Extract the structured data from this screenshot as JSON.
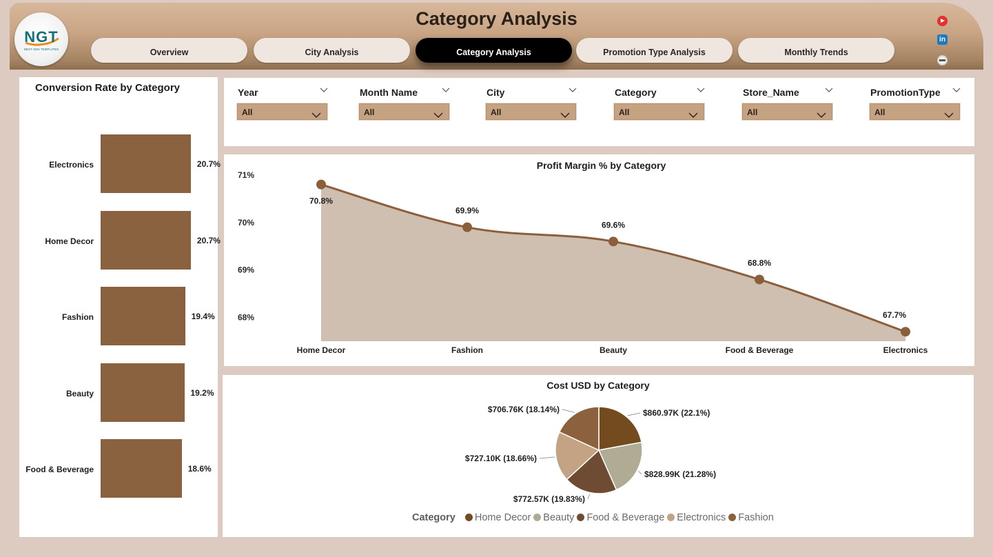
{
  "header": {
    "title": "Category Analysis",
    "logo_text": "NGT",
    "logo_subtext": "NEXT GEN TEMPLATES",
    "nav": [
      {
        "label": "Overview",
        "active": false
      },
      {
        "label": "City Analysis",
        "active": false
      },
      {
        "label": "Category Analysis",
        "active": true
      },
      {
        "label": "Promotion Type Analysis",
        "active": false
      },
      {
        "label": "Monthly Trends",
        "active": false
      }
    ],
    "social_icons": [
      "youtube-icon",
      "linkedin-icon",
      "website-icon"
    ],
    "linkedin_glyph": "in"
  },
  "filters": [
    {
      "label": "Year",
      "value": "All"
    },
    {
      "label": "Month Name",
      "value": "All"
    },
    {
      "label": "City",
      "value": "All"
    },
    {
      "label": "Category",
      "value": "All"
    },
    {
      "label": "Store_Name",
      "value": "All"
    },
    {
      "label": "PromotionType",
      "value": "All"
    }
  ],
  "colors": {
    "accent_brown": "#8a6240",
    "area_fill": "#cfbfb0",
    "line": "#8b5e3c",
    "active_tab": "#000000",
    "slicer": "#c4a282"
  },
  "chart_data": [
    {
      "type": "bar",
      "orientation": "horizontal",
      "title": "Conversion Rate by Category",
      "categories": [
        "Electronics",
        "Home Decor",
        "Fashion",
        "Beauty",
        "Food & Beverage"
      ],
      "values": [
        20.7,
        20.7,
        19.4,
        19.2,
        18.6
      ],
      "labels": [
        "20.7%",
        "20.7%",
        "19.4%",
        "19.2%",
        "18.6%"
      ],
      "unit": "%"
    },
    {
      "type": "area",
      "title": "Profit Margin % by Category",
      "categories": [
        "Home Decor",
        "Fashion",
        "Beauty",
        "Food & Beverage",
        "Electronics"
      ],
      "values": [
        70.8,
        69.9,
        69.6,
        68.8,
        67.7
      ],
      "labels": [
        "70.8%",
        "69.9%",
        "69.6%",
        "68.8%",
        "67.7%"
      ],
      "ylim": [
        67.5,
        71.1
      ],
      "yticks": [
        68,
        69,
        70,
        71
      ],
      "ytick_labels": [
        "68%",
        "69%",
        "70%",
        "71%"
      ]
    },
    {
      "type": "pie",
      "title": "Cost USD by Category",
      "legend_title": "Category",
      "slices": [
        {
          "name": "Home Decor",
          "value": 860.97,
          "label": "$860.97K (22.1%)",
          "color": "#734b1e"
        },
        {
          "name": "Beauty",
          "value": 828.99,
          "label": "$828.99K (21.28%)",
          "color": "#b0ab93"
        },
        {
          "name": "Food & Beverage",
          "value": 772.57,
          "label": "$772.57K (19.83%)",
          "color": "#6e4c34"
        },
        {
          "name": "Electronics",
          "value": 727.1,
          "label": "$727.10K (18.66%)",
          "color": "#c4a385"
        },
        {
          "name": "Fashion",
          "value": 706.76,
          "label": "$706.76K (18.14%)",
          "color": "#8c613d"
        }
      ]
    }
  ]
}
